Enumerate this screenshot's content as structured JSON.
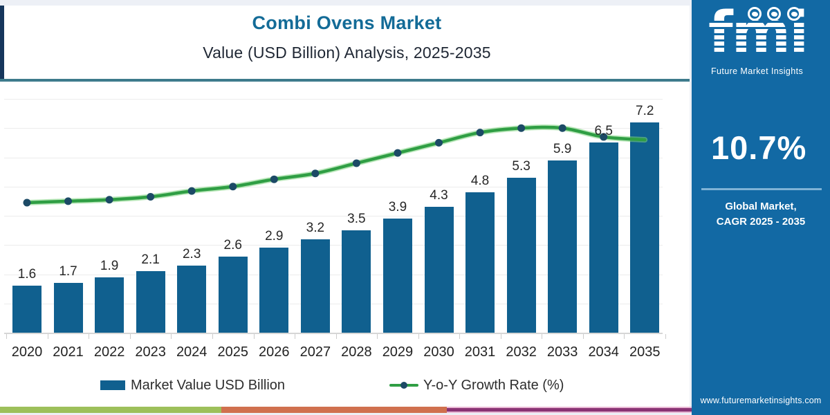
{
  "header": {
    "title": "Combi Ovens Market",
    "subtitle": "Value (USD Billion) Analysis, 2025-2035"
  },
  "chart_data": {
    "type": "bar",
    "title": "Combi Ovens Market Value (USD Billion) Analysis, 2025-2035",
    "categories": [
      "2020",
      "2021",
      "2022",
      "2023",
      "2024",
      "2025",
      "2026",
      "2027",
      "2028",
      "2029",
      "2030",
      "2031",
      "2032",
      "2033",
      "2034",
      "2035"
    ],
    "series": [
      {
        "name": "Market Value USD Billion",
        "type": "bar",
        "color": "#10608f",
        "values": [
          1.6,
          1.7,
          1.9,
          2.1,
          2.3,
          2.6,
          2.9,
          3.2,
          3.5,
          3.9,
          4.3,
          4.8,
          5.3,
          5.9,
          6.5,
          7.2
        ]
      },
      {
        "name": "Y-o-Y Growth Rate (%)",
        "type": "line",
        "color": "#2f9e44",
        "marker_color": "#1c4a66",
        "values_estimated": [
          8.9,
          9.0,
          9.1,
          9.3,
          9.7,
          10.0,
          10.5,
          10.9,
          11.6,
          12.3,
          13.0,
          13.7,
          14.0,
          14.0,
          13.4,
          13.2
        ]
      }
    ],
    "value_labels": [
      "1.6",
      "1.7",
      "1.9",
      "2.1",
      "2.3",
      "2.6",
      "2.9",
      "3.2",
      "3.5",
      "3.9",
      "4.3",
      "4.8",
      "5.3",
      "5.9",
      "6.5",
      "7.2"
    ],
    "ylim": [
      0,
      8
    ],
    "grid": true,
    "legend_position": "bottom"
  },
  "legend": {
    "bar_label": "Market Value USD Billion",
    "line_label": "Y-o-Y Growth Rate (%)"
  },
  "sidebar": {
    "logo_text": "fmi",
    "logo_tagline": "Future Market Insights",
    "logo_icons": [
      "map-icon",
      "compass-icon",
      "globe-icon"
    ],
    "cagr_value": "10.7%",
    "cagr_caption_line1": "Global Market,",
    "cagr_caption_line2": "CAGR 2025 - 2035",
    "website": "www.futuremarketinsights.com",
    "bg_color": "#1269a4"
  },
  "footer_strip": {
    "colors": [
      "#9dc05a",
      "#d0704e",
      "#8a3374"
    ],
    "purple_border": "#e9b7d4"
  },
  "accent_colors": {
    "title_teal": "#136b97",
    "divider_teal": "#3e7b8c",
    "header_accent_navy": "#16365c"
  }
}
